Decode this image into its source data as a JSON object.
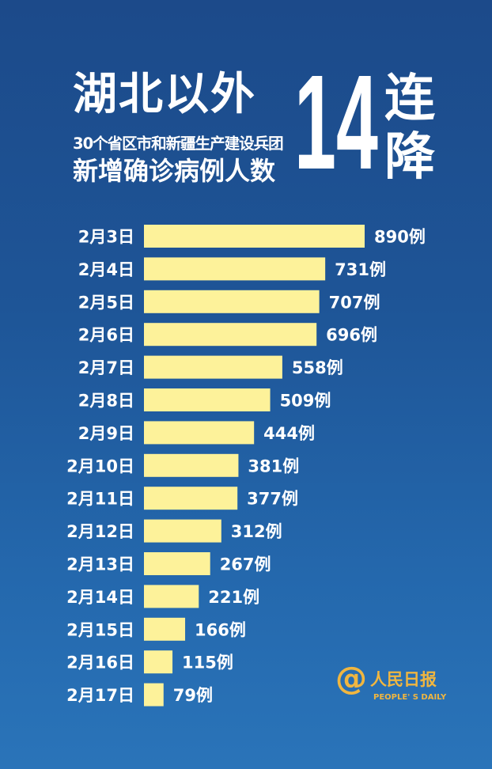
{
  "header": {
    "title": "湖北以外",
    "subtitle": "30个省区市和新疆生产建设兵团",
    "title_line3": "新增确诊病例人数",
    "big_number": "14",
    "side_text": "连降"
  },
  "chart_data": {
    "type": "bar",
    "orientation": "horizontal",
    "categories": [
      "2月3日",
      "2月4日",
      "2月5日",
      "2月6日",
      "2月7日",
      "2月8日",
      "2月9日",
      "2月10日",
      "2月11日",
      "2月12日",
      "2月13日",
      "2月14日",
      "2月15日",
      "2月16日",
      "2月17日"
    ],
    "values": [
      890,
      731,
      707,
      696,
      558,
      509,
      444,
      381,
      377,
      312,
      267,
      221,
      166,
      115,
      79
    ],
    "value_suffix": "例",
    "bar_color": "#fdf29a",
    "label_color": "#ffffff",
    "grid": false
  },
  "logo": {
    "symbol": "@",
    "name": "人民日报",
    "english": "PEOPLE' S DAILY",
    "color": "#f0b640"
  },
  "colors": {
    "background_top": "#1c4a8a",
    "background_bottom": "#2a74b9"
  }
}
